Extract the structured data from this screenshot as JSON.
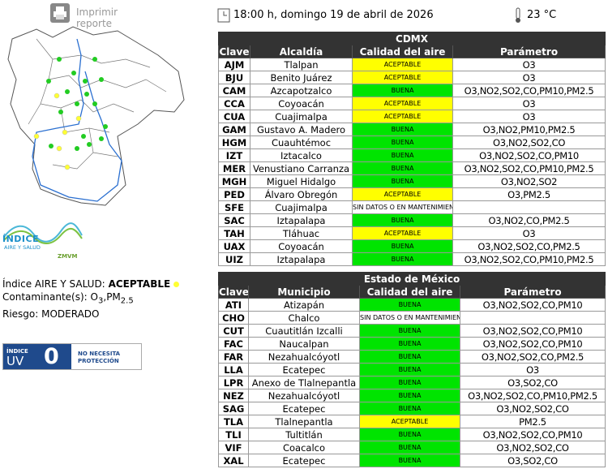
{
  "header": {
    "print_label": "Imprimir reporte",
    "datetime": "18:00 h, domingo 19 de abril de 2026",
    "temperature": "23 °C"
  },
  "logo": {
    "line1": "ÍNDICE",
    "line2": "AIRE Y SALUD",
    "region": "ZMVM"
  },
  "summary": {
    "index_label": "Índice AIRE Y SALUD:",
    "index_value": "ACEPTABLE",
    "pollutants_label": "Contaminante(s):",
    "pollutants": [
      "O",
      "3",
      ",PM",
      "2.5"
    ],
    "risk": "Riesgo: MODERADO"
  },
  "uv": {
    "label_top": "ÍNDICE",
    "label_bottom": "UV",
    "value": 0,
    "advice_line1": "NO NECESITA",
    "advice_line2": "PROTECCIÓN"
  },
  "quality_colors": {
    "ACEPTABLE": "#ffff00",
    "BUENA": "#00e400",
    "SIN DATOS O EN MANTENIMIENTO": "#ffffff"
  },
  "tables": [
    {
      "title": "CDMX",
      "columns": [
        "Clave",
        "Alcaldía",
        "Calidad del aire",
        "Parámetro"
      ],
      "rows": [
        [
          "AJM",
          "Tlalpan",
          "ACEPTABLE",
          "O3"
        ],
        [
          "BJU",
          "Benito Juárez",
          "ACEPTABLE",
          "O3"
        ],
        [
          "CAM",
          "Azcapotzalco",
          "BUENA",
          "O3,NO2,SO2,CO,PM10,PM2.5"
        ],
        [
          "CCA",
          "Coyoacán",
          "ACEPTABLE",
          "O3"
        ],
        [
          "CUA",
          "Cuajimalpa",
          "ACEPTABLE",
          "O3"
        ],
        [
          "GAM",
          "Gustavo A. Madero",
          "BUENA",
          "O3,NO2,PM10,PM2.5"
        ],
        [
          "HGM",
          "Cuauhtémoc",
          "BUENA",
          "O3,NO2,SO2,CO"
        ],
        [
          "IZT",
          "Iztacalco",
          "BUENA",
          "O3,NO2,SO2,CO,PM10"
        ],
        [
          "MER",
          "Venustiano Carranza",
          "BUENA",
          "O3,NO2,SO2,CO,PM10,PM2.5"
        ],
        [
          "MGH",
          "Miguel Hidalgo",
          "BUENA",
          "O3,NO2,SO2"
        ],
        [
          "PED",
          "Álvaro Obregón",
          "ACEPTABLE",
          "O3,PM2.5"
        ],
        [
          "SFE",
          "Cuajimalpa",
          "SIN DATOS O EN MANTENIMIENTO",
          null
        ],
        [
          "SAC",
          "Iztapalapa",
          "BUENA",
          "O3,NO2,CO,PM2.5"
        ],
        [
          "TAH",
          "Tláhuac",
          "ACEPTABLE",
          "O3"
        ],
        [
          "UAX",
          "Coyoacán",
          "BUENA",
          "O3,NO2,SO2,CO,PM2.5"
        ],
        [
          "UIZ",
          "Iztapalapa",
          "BUENA",
          "O3,NO2,SO2,CO,PM10,PM2.5"
        ]
      ]
    },
    {
      "title": "Estado de México",
      "columns": [
        "Clave",
        "Municipio",
        "Calidad del aire",
        "Parámetro"
      ],
      "rows": [
        [
          "ATI",
          "Atizapán",
          "BUENA",
          "O3,NO2,SO2,CO,PM10"
        ],
        [
          "CHO",
          "Chalco",
          "SIN DATOS O EN MANTENIMIENTO",
          null
        ],
        [
          "CUT",
          "Cuautitlán Izcalli",
          "BUENA",
          "O3,NO2,SO2,CO,PM10"
        ],
        [
          "FAC",
          "Naucalpan",
          "BUENA",
          "O3,NO2,SO2,CO,PM10"
        ],
        [
          "FAR",
          "Nezahualcóyotl",
          "BUENA",
          "O3,NO2,SO2,CO,PM2.5"
        ],
        [
          "LLA",
          "Ecatepec",
          "BUENA",
          "O3"
        ],
        [
          "LPR",
          "Anexo de Tlalnepantla",
          "BUENA",
          "O3,SO2,CO"
        ],
        [
          "NEZ",
          "Nezahualcóyotl",
          "BUENA",
          "O3,NO2,SO2,CO,PM10,PM2.5"
        ],
        [
          "SAG",
          "Ecatepec",
          "BUENA",
          "O3,NO2,SO2,CO"
        ],
        [
          "TLA",
          "Tlalnepantla",
          "ACEPTABLE",
          "PM2.5"
        ],
        [
          "TLI",
          "Tultitlán",
          "BUENA",
          "O3,NO2,SO2,CO,PM10"
        ],
        [
          "VIF",
          "Coacalco",
          "BUENA",
          "O3,NO2,SO2,CO"
        ],
        [
          "XAL",
          "Ecatepec",
          "BUENA",
          "O3,SO2,CO"
        ]
      ]
    }
  ]
}
